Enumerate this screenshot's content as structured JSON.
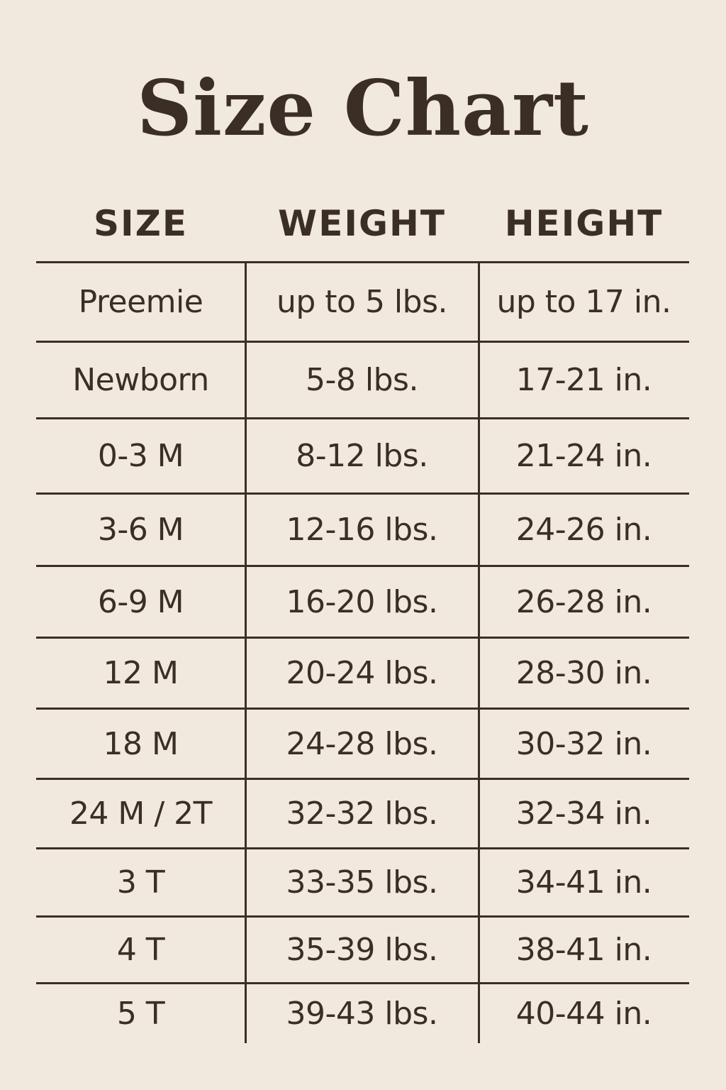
{
  "title": "Size Chart",
  "columns": [
    "SIZE",
    "WEIGHT",
    "HEIGHT"
  ],
  "rows": [
    {
      "size": "Preemie",
      "weight": "up to 5 lbs.",
      "height": "up to 17 in."
    },
    {
      "size": "Newborn",
      "weight": "5-8 lbs.",
      "height": "17-21 in."
    },
    {
      "size": "0-3 M",
      "weight": "8-12 lbs.",
      "height": "21-24 in."
    },
    {
      "size": "3-6 M",
      "weight": "12-16 lbs.",
      "height": "24-26 in."
    },
    {
      "size": "6-9 M",
      "weight": "16-20 lbs.",
      "height": "26-28 in."
    },
    {
      "size": "12 M",
      "weight": "20-24 lbs.",
      "height": "28-30 in."
    },
    {
      "size": "18 M",
      "weight": "24-28 lbs.",
      "height": "30-32 in."
    },
    {
      "size": "24 M / 2T",
      "weight": "32-32 lbs.",
      "height": "32-34 in."
    },
    {
      "size": "3 T",
      "weight": "33-35 lbs.",
      "height": "34-41 in."
    },
    {
      "size": "4 T",
      "weight": "35-39 lbs.",
      "height": "38-41 in."
    },
    {
      "size": "5 T",
      "weight": "39-43 lbs.",
      "height": "40-44 in."
    }
  ],
  "colors": {
    "background": "#f1e9dd",
    "text": "#3a2e26"
  }
}
